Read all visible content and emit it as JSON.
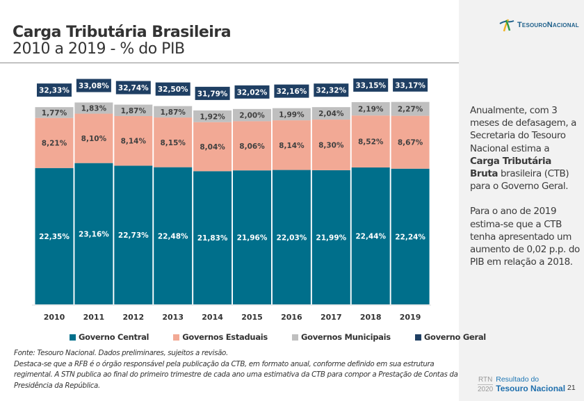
{
  "header": {
    "title": "Carga Tributária Brasileira",
    "subtitle": "2010 a 2019 - % do PIB"
  },
  "logo": {
    "text": "TesouroNacional"
  },
  "side_panel": {
    "para1_pre": "Anualmente, com 3 meses de defasagem, a Secretaria do Tesouro Nacional estima a ",
    "para1_bold": "Carga Tributária Bruta",
    "para1_post": " brasileira (CTB) para o Governo Geral.",
    "para2": "Para o ano de 2019 estima-se que a CTB tenha apresentado um aumento de 0,02 p.p. do PIB em relação a 2018."
  },
  "notes": {
    "line1": "Fonte: Tesouro Nacional. Dados preliminares, sujeitos a revisão.",
    "line2": "Destaca-se que a RFB é o órgão responsável pela publicação da CTB, em formato anual, conforme definido em sua estrutura regimental. A STN publica ao final do primeiro trimestre de cada ano uma estimativa da CTB para compor a Prestação de Contas da Presidência da República."
  },
  "footer": {
    "rtn_top": "RTN",
    "rtn_bottom": "2020",
    "title_line1": "Resultado do",
    "title_line2": "Tesouro Nacional",
    "page": "21"
  },
  "chart_data": {
    "type": "bar",
    "stacked": true,
    "title": "Carga Tributária Brasileira 2010 a 2019 - % do PIB",
    "xlabel": "",
    "ylabel": "% do PIB",
    "categories": [
      "2010",
      "2011",
      "2012",
      "2013",
      "2014",
      "2015",
      "2016",
      "2017",
      "2018",
      "2019"
    ],
    "series": [
      {
        "name": "Governo Central",
        "color": "#006f8b",
        "values": [
          22.35,
          23.16,
          22.73,
          22.48,
          21.83,
          21.96,
          22.03,
          21.99,
          22.44,
          22.24
        ]
      },
      {
        "name": "Governos Estaduais",
        "color": "#f2a995",
        "values": [
          8.21,
          8.1,
          8.14,
          8.15,
          8.04,
          8.06,
          8.14,
          8.3,
          8.52,
          8.67
        ]
      },
      {
        "name": "Governos Municipais",
        "color": "#bfbfbf",
        "values": [
          1.77,
          1.83,
          1.87,
          1.87,
          1.92,
          2.0,
          1.99,
          2.04,
          2.19,
          2.27
        ]
      },
      {
        "name": "Governo Geral",
        "color": "#1f3f63",
        "values": [
          32.33,
          33.08,
          32.74,
          32.5,
          31.79,
          32.02,
          32.16,
          32.32,
          33.15,
          33.17
        ]
      }
    ],
    "data_labels": {
      "Governo Central": [
        "22,35%",
        "23,16%",
        "22,73%",
        "22,48%",
        "21,83%",
        "21,96%",
        "22,03%",
        "21,99%",
        "22,44%",
        "22,24%"
      ],
      "Governos Estaduais": [
        "8,21%",
        "8,10%",
        "8,14%",
        "8,15%",
        "8,04%",
        "8,06%",
        "8,14%",
        "8,30%",
        "8,52%",
        "8,67%"
      ],
      "Governos Municipais": [
        "1,77%",
        "1,83%",
        "1,87%",
        "1,87%",
        "1,92%",
        "2,00%",
        "1,99%",
        "2,04%",
        "2,19%",
        "2,27%"
      ],
      "Governo Geral": [
        "32,33%",
        "33,08%",
        "32,74%",
        "32,50%",
        "31,79%",
        "32,02%",
        "32,16%",
        "32,32%",
        "33,15%",
        "33,17%"
      ]
    },
    "ylim": [
      0,
      36
    ],
    "grid": false,
    "legend": "bottom"
  }
}
